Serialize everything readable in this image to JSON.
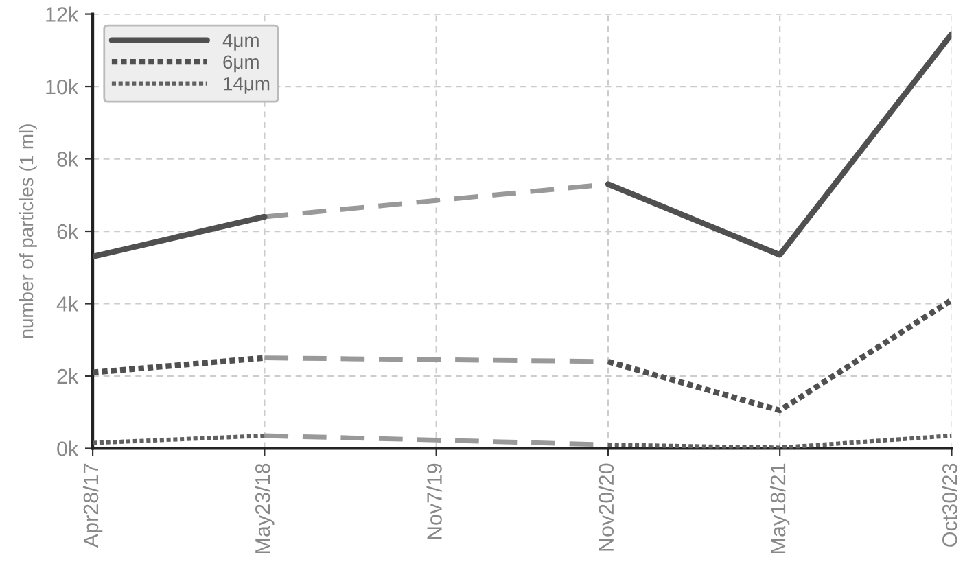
{
  "chart_data": {
    "type": "line",
    "ylabel": "number of particles (1 ml)",
    "categories": [
      "Apr28/17",
      "May23/18",
      "Nov7/19",
      "Nov20/20",
      "May18/21",
      "Oct30/23"
    ],
    "series": [
      {
        "name": "4μm",
        "color": "#505050",
        "line_style": "solid",
        "values": [
          5300,
          6400,
          null,
          7300,
          5350,
          11450
        ]
      },
      {
        "name": "6μm",
        "color": "#505050",
        "line_style": "dotted",
        "values": [
          2100,
          2500,
          null,
          2400,
          1050,
          4100
        ]
      },
      {
        "name": "14μm",
        "color": "#606060",
        "line_style": "dotted",
        "values": [
          150,
          350,
          null,
          100,
          20,
          350
        ]
      },
      {
        "color": "#999999",
        "line_style": "dashed",
        "values": [
          null,
          6400,
          6850,
          7300,
          null,
          null
        ]
      },
      {
        "color": "#999999",
        "line_style": "dashed",
        "values": [
          null,
          2500,
          2450,
          2400,
          null,
          null
        ]
      },
      {
        "color": "#999999",
        "line_style": "dashed",
        "values": [
          null,
          350,
          230,
          100,
          null,
          null
        ]
      }
    ],
    "ylim": [
      0,
      12000
    ],
    "yticks": [
      {
        "value": 0,
        "label": "0k"
      },
      {
        "value": 2000,
        "label": "2k"
      },
      {
        "value": 4000,
        "label": "4k"
      },
      {
        "value": 6000,
        "label": "6k"
      },
      {
        "value": 8000,
        "label": "8k"
      },
      {
        "value": 10000,
        "label": "10k"
      },
      {
        "value": 12000,
        "label": "12k"
      }
    ],
    "grid": true,
    "legend": "top left"
  }
}
